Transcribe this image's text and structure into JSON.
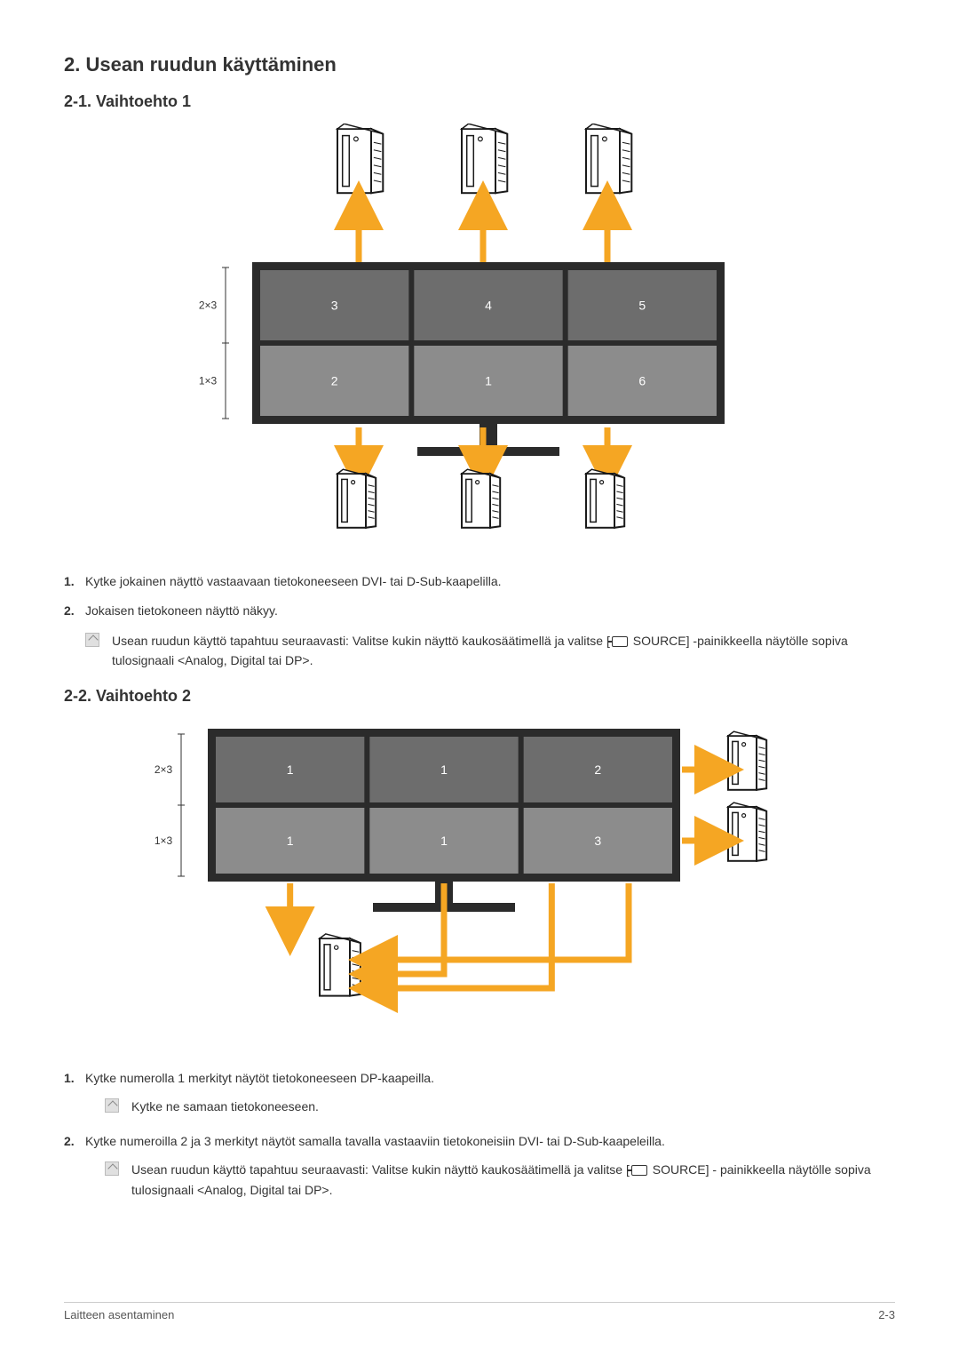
{
  "section_title": "2. Usean ruudun käyttäminen",
  "option1": {
    "heading": "2-1. Vaihtoehto 1",
    "diagram": {
      "row_labels": [
        "2×3",
        "1×3"
      ],
      "top_row_numbers": [
        "3",
        "4",
        "5"
      ],
      "bottom_row_numbers": [
        "2",
        "1",
        "6"
      ],
      "colors": {
        "arrow": "#f5a623",
        "screen_dark": "#6d6d6d",
        "screen_light": "#8c8c8c",
        "frame": "#2b2b2b",
        "label_text": "#ffffff",
        "axis": "#333333",
        "pc_stroke": "#1a1a1a",
        "pc_fill": "#ffffff"
      }
    },
    "steps": [
      {
        "n": "1.",
        "text": "Kytke jokainen näyttö vastaavaan tietokoneeseen DVI- tai D-Sub-kaapelilla."
      },
      {
        "n": "2.",
        "text": "Jokaisen tietokoneen näyttö näkyy."
      }
    ],
    "note_pre": "Usean ruudun käyttö tapahtuu seuraavasti: Valitse kukin näyttö kaukosäätimellä ja valitse [",
    "note_source": " SOURCE] -painikkeella näytölle sopiva tulosignaali <Analog, Digital tai DP>."
  },
  "option2": {
    "heading": "2-2. Vaihtoehto 2",
    "diagram": {
      "row_labels": [
        "2×3",
        "1×3"
      ],
      "top_row_numbers": [
        "1",
        "1",
        "2"
      ],
      "bottom_row_numbers": [
        "1",
        "1",
        "3"
      ],
      "colors": {
        "arrow": "#f5a623",
        "screen_dark": "#6d6d6d",
        "screen_light": "#8c8c8c",
        "frame": "#2b2b2b",
        "label_text": "#ffffff",
        "axis": "#333333",
        "pc_stroke": "#1a1a1a",
        "pc_fill": "#ffffff"
      }
    },
    "steps": [
      {
        "n": "1.",
        "text": "Kytke numerolla 1 merkityt näytöt tietokoneeseen DP-kaapeilla."
      },
      {
        "n": "2.",
        "text": "Kytke numeroilla 2 ja 3 merkityt näytöt samalla tavalla vastaaviin tietokoneisiin DVI- tai D-Sub-kaapeleilla."
      }
    ],
    "note1": "Kytke ne samaan tietokoneeseen.",
    "note2_pre": "Usean ruudun käyttö tapahtuu seuraavasti: Valitse kukin näyttö kaukosäätimellä ja valitse [",
    "note2_source": " SOURCE] - painikkeella näytölle sopiva tulosignaali <Analog, Digital tai DP>."
  },
  "footer": {
    "left": "Laitteen asentaminen",
    "right": "2-3"
  }
}
